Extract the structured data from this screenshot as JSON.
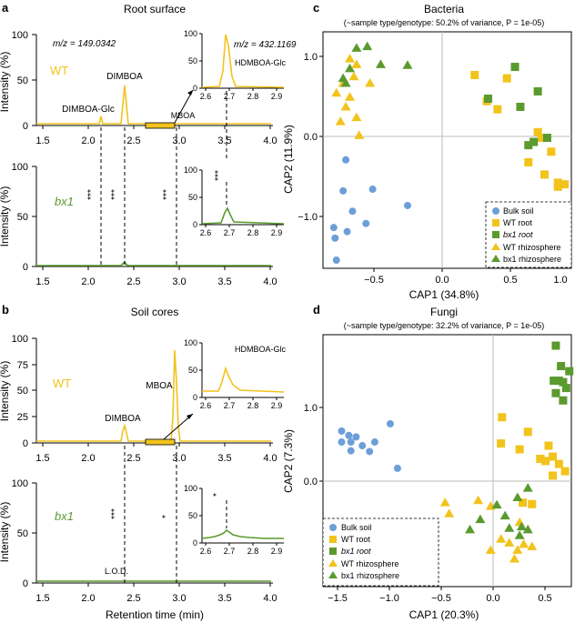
{
  "colors": {
    "wt": "#f2c31c",
    "wt_text": "#f2c31c",
    "bx1": "#5a9a2e",
    "bx1_text": "#5a9a2e",
    "bulk": "#6c9fd8",
    "axis": "#000000"
  },
  "panels": {
    "a": {
      "letter": "a",
      "title": "Root surface",
      "top": {
        "genotype": "WT",
        "mz": "m/z = 149.0342",
        "labels": {
          "dimboa": "DIMBOA",
          "dimboa_glc": "DIMBOA-Glc",
          "mboa": "MBOA"
        },
        "ylabel": "Intensity (%)",
        "yticks": [
          "0",
          "50",
          "100"
        ],
        "xticks": [
          "1.5",
          "2.0",
          "2.5",
          "3.0",
          "3.5",
          "4.0"
        ],
        "inset": {
          "mz": "m/z = 432.1169",
          "label": "HDMBOA-Glc",
          "yticks": [
            "0",
            "50",
            "100"
          ],
          "xticks": [
            "2.6",
            "2.7",
            "2.8",
            "2.9"
          ]
        }
      },
      "bottom": {
        "genotype": "bx1",
        "ylabel": "Intensity (%)",
        "yticks": [
          "0",
          "50",
          "100"
        ],
        "xticks": [
          "1.5",
          "2.0",
          "2.5",
          "3.0",
          "3.5",
          "4.0"
        ],
        "stars": [
          "***",
          "***",
          "***"
        ],
        "inset": {
          "star": "***",
          "yticks": [
            "0",
            "50",
            "100"
          ],
          "xticks": [
            "2.6",
            "2.7",
            "2.8",
            "2.9"
          ]
        }
      }
    },
    "b": {
      "letter": "b",
      "title": "Soil cores",
      "top": {
        "genotype": "WT",
        "labels": {
          "dimboa": "DIMBOA",
          "mboa": "MBOA"
        },
        "ylabel": "Intensity (%)",
        "yticks": [
          "0",
          "25",
          "50",
          "75",
          "100"
        ],
        "xticks": [
          "1.5",
          "2.0",
          "2.5",
          "3.0",
          "3.5",
          "4.0"
        ],
        "inset": {
          "label": "HDMBOA-Glc",
          "yticks": [
            "0",
            "50",
            "100"
          ],
          "xticks": [
            "2.6",
            "2.7",
            "2.8",
            "2.9"
          ]
        }
      },
      "bottom": {
        "genotype": "bx1",
        "ylabel": "Intensity (%)",
        "yticks": [
          "0",
          "50",
          "100"
        ],
        "xticks": [
          "1.5",
          "2.0",
          "2.5",
          "3.0",
          "3.5",
          "4.0"
        ],
        "stars": [
          "***",
          "*"
        ],
        "lod": "L.O.D.",
        "xlabel": "Retention time (min)",
        "inset": {
          "star": "*",
          "yticks": [
            "0",
            "50",
            "100"
          ],
          "xticks": [
            "2.6",
            "2.7",
            "2.8",
            "2.9"
          ]
        }
      }
    },
    "c": {
      "letter": "c",
      "title": "Bacteria",
      "subtitle": "(~sample type/genotype: 50.2% of variance, P = 1e-05)",
      "xlabel": "CAP1 (34.8%)",
      "ylabel": "CAP2 (11.9%)",
      "xticks": [
        "−0.5",
        "0.0",
        "0.5",
        "1.0"
      ],
      "yticks": [
        "−1.0",
        "0.0",
        "1.0"
      ]
    },
    "d": {
      "letter": "d",
      "title": "Fungi",
      "subtitle": "(~sample type/genotype: 32.2% of variance, P = 1e-05)",
      "xlabel": "CAP1 (20.3%)",
      "ylabel": "CAP2 (7.3%)",
      "xticks": [
        "−1.5",
        "−1.0",
        "−0.5",
        "0.0",
        "0.5"
      ],
      "yticks": [
        "0.0",
        "1.0"
      ]
    }
  },
  "legend": {
    "bulk": "Bulk soil",
    "wt_root": "WT root",
    "bx1_root": "bx1 root",
    "wt_rhizo": "WT rhizosphere",
    "bx1_rhizo": "bx1 rhizosphere"
  },
  "chart_data": [
    {
      "type": "line",
      "panel": "a-top",
      "title": "Root surface",
      "xlabel": "",
      "ylabel": "Intensity (%)",
      "xlim": [
        1.5,
        4.0
      ],
      "ylim": [
        0,
        100
      ],
      "series": [
        {
          "name": "WT",
          "color": "#f2c31c",
          "x": [
            1.5,
            2.13,
            2.15,
            2.17,
            2.33,
            2.36,
            2.38,
            2.4,
            2.43,
            2.94,
            4.0
          ],
          "y": [
            0,
            0,
            11,
            0,
            0,
            20,
            43,
            20,
            0,
            1,
            0
          ]
        }
      ],
      "peaks": [
        {
          "name": "DIMBOA-Glc",
          "rt": 2.15,
          "y": 11
        },
        {
          "name": "DIMBOA",
          "rt": 2.38,
          "y": 43
        },
        {
          "name": "MBOA",
          "rt": 2.94,
          "y": 1
        }
      ]
    },
    {
      "type": "line",
      "panel": "a-top-inset",
      "title": "HDMBOA-Glc",
      "xlim": [
        2.6,
        2.9
      ],
      "ylim": [
        0,
        100
      ],
      "series": [
        {
          "name": "WT",
          "x": [
            2.6,
            2.66,
            2.68,
            2.69,
            2.7,
            2.72,
            2.74,
            2.9
          ],
          "y": [
            0,
            2,
            40,
            100,
            80,
            25,
            4,
            0
          ]
        }
      ]
    },
    {
      "type": "line",
      "panel": "a-bottom",
      "xlim": [
        1.5,
        4.0
      ],
      "ylim": [
        0,
        100
      ],
      "series": [
        {
          "name": "bx1",
          "color": "#5a9a2e",
          "x": [
            1.5,
            2.36,
            2.38,
            2.4,
            4.0
          ],
          "y": [
            0,
            0,
            3,
            0,
            0
          ]
        }
      ],
      "significance": [
        {
          "rt": 2.15,
          "label": "***"
        },
        {
          "rt": 2.38,
          "label": "***"
        },
        {
          "rt": 2.94,
          "label": "***"
        }
      ]
    },
    {
      "type": "line",
      "panel": "a-bottom-inset",
      "xlim": [
        2.6,
        2.9
      ],
      "ylim": [
        0,
        100
      ],
      "series": [
        {
          "name": "bx1",
          "x": [
            2.6,
            2.67,
            2.69,
            2.7,
            2.72,
            2.74,
            2.9
          ],
          "y": [
            0,
            2,
            25,
            30,
            12,
            2,
            0
          ]
        }
      ]
    },
    {
      "type": "line",
      "panel": "b-top",
      "title": "Soil cores",
      "ylabel": "Intensity (%)",
      "xlim": [
        1.5,
        4.0
      ],
      "ylim": [
        0,
        100
      ],
      "series": [
        {
          "name": "WT",
          "color": "#f2c31c",
          "x": [
            1.5,
            2.35,
            2.38,
            2.41,
            2.9,
            2.92,
            2.94,
            2.96,
            2.98,
            3.0,
            4.0
          ],
          "y": [
            0,
            0,
            15,
            0,
            0,
            40,
            88,
            50,
            15,
            0,
            0
          ]
        }
      ],
      "peaks": [
        {
          "name": "DIMBOA",
          "rt": 2.38,
          "y": 15
        },
        {
          "name": "MBOA",
          "rt": 2.94,
          "y": 88
        }
      ]
    },
    {
      "type": "line",
      "panel": "b-top-inset",
      "title": "HDMBOA-Glc",
      "xlim": [
        2.6,
        2.9
      ],
      "ylim": [
        0,
        100
      ],
      "series": [
        {
          "name": "WT",
          "x": [
            2.6,
            2.66,
            2.68,
            2.7,
            2.72,
            2.74,
            2.78,
            2.9
          ],
          "y": [
            12,
            12,
            30,
            55,
            38,
            22,
            12,
            10
          ]
        }
      ]
    },
    {
      "type": "line",
      "panel": "b-bottom",
      "xlabel": "Retention time (min)",
      "xlim": [
        1.5,
        4.0
      ],
      "ylim": [
        0,
        100
      ],
      "series": [
        {
          "name": "bx1",
          "color": "#5a9a2e",
          "x": [
            1.5,
            4.0
          ],
          "y": [
            1,
            1
          ]
        }
      ],
      "significance": [
        {
          "rt": 2.38,
          "label": "***"
        },
        {
          "rt": 2.94,
          "label": "*"
        }
      ]
    },
    {
      "type": "line",
      "panel": "b-bottom-inset",
      "xlim": [
        2.6,
        2.9
      ],
      "ylim": [
        0,
        100
      ],
      "series": [
        {
          "name": "bx1",
          "x": [
            2.6,
            2.65,
            2.68,
            2.7,
            2.72,
            2.75,
            2.8,
            2.9
          ],
          "y": [
            8,
            10,
            14,
            22,
            16,
            12,
            9,
            8
          ]
        }
      ]
    },
    {
      "type": "scatter",
      "panel": "c",
      "title": "Bacteria",
      "xlabel": "CAP1 (34.8%)",
      "ylabel": "CAP2 (11.9%)",
      "xlim": [
        -0.75,
        1.1
      ],
      "ylim": [
        -1.65,
        1.25
      ],
      "series": [
        {
          "name": "Bulk soil",
          "marker": "circle",
          "color": "#6c9fd8",
          "points": [
            [
              -0.58,
              -0.32
            ],
            [
              -0.6,
              -0.7
            ],
            [
              -0.38,
              -0.68
            ],
            [
              -0.53,
              -0.95
            ],
            [
              -0.43,
              -1.1
            ],
            [
              -0.67,
              -1.15
            ],
            [
              -0.66,
              -1.28
            ],
            [
              -0.57,
              -1.2
            ],
            [
              -0.65,
              -1.55
            ],
            [
              -0.12,
              -0.88
            ]
          ]
        },
        {
          "name": "WT root",
          "marker": "square",
          "color": "#f2c31c",
          "points": [
            [
              0.38,
              0.72
            ],
            [
              0.62,
              0.68
            ],
            [
              0.47,
              0.4
            ],
            [
              0.55,
              0.3
            ],
            [
              0.85,
              0.02
            ],
            [
              0.95,
              -0.22
            ],
            [
              0.78,
              -0.35
            ],
            [
              0.9,
              -0.5
            ],
            [
              1.0,
              -0.6
            ],
            [
              1.05,
              -0.62
            ],
            [
              1.0,
              -0.65
            ],
            [
              0.88,
              -0.05
            ]
          ]
        },
        {
          "name": "bx1 root",
          "marker": "square",
          "color": "#5a9a2e",
          "points": [
            [
              0.68,
              0.82
            ],
            [
              0.85,
              0.52
            ],
            [
              0.72,
              0.33
            ],
            [
              0.48,
              0.43
            ],
            [
              0.82,
              -0.1
            ],
            [
              0.78,
              -0.14
            ],
            [
              0.92,
              -0.05
            ]
          ]
        },
        {
          "name": "WT rhizosphere",
          "marker": "triangle",
          "color": "#f2c31c",
          "points": [
            [
              -0.55,
              0.92
            ],
            [
              -0.5,
              0.85
            ],
            [
              -0.4,
              0.62
            ],
            [
              -0.55,
              0.45
            ],
            [
              -0.65,
              0.5
            ],
            [
              -0.58,
              0.33
            ],
            [
              -0.5,
              0.2
            ],
            [
              -0.62,
              0.15
            ],
            [
              -0.48,
              -0.02
            ],
            [
              -0.6,
              0.62
            ],
            [
              -0.52,
              0.7
            ]
          ]
        },
        {
          "name": "bx1 rhizosphere",
          "marker": "triangle",
          "color": "#5a9a2e",
          "points": [
            [
              -0.5,
              1.05
            ],
            [
              -0.42,
              1.07
            ],
            [
              -0.32,
              0.85
            ],
            [
              -0.55,
              0.8
            ],
            [
              -0.12,
              0.84
            ],
            [
              -0.6,
              0.68
            ],
            [
              -0.58,
              0.62
            ]
          ]
        }
      ]
    },
    {
      "type": "scatter",
      "panel": "d",
      "title": "Fungi",
      "xlabel": "CAP1 (20.3%)",
      "ylabel": "CAP2 (7.3%)",
      "xlim": [
        -1.6,
        0.8
      ],
      "ylim": [
        -1.7,
        1.75
      ],
      "series": [
        {
          "name": "Bulk soil",
          "marker": "circle",
          "color": "#6c9fd8",
          "points": [
            [
              -1.42,
              0.43
            ],
            [
              -1.35,
              0.37
            ],
            [
              -1.33,
              0.28
            ],
            [
              -1.42,
              0.28
            ],
            [
              -1.28,
              0.35
            ],
            [
              -1.22,
              0.23
            ],
            [
              -1.33,
              0.16
            ],
            [
              -1.1,
              0.28
            ],
            [
              -1.15,
              0.15
            ],
            [
              -0.95,
              0.53
            ],
            [
              -0.88,
              -0.08
            ]
          ]
        },
        {
          "name": "WT root",
          "marker": "square",
          "color": "#f2c31c",
          "points": [
            [
              0.13,
              0.62
            ],
            [
              0.38,
              0.42
            ],
            [
              0.12,
              0.26
            ],
            [
              0.3,
              0.18
            ],
            [
              0.58,
              0.23
            ],
            [
              0.5,
              0.05
            ],
            [
              0.55,
              0.02
            ],
            [
              0.62,
              0.08
            ],
            [
              0.68,
              -0.02
            ],
            [
              0.74,
              -0.12
            ],
            [
              0.62,
              -0.18
            ],
            [
              0.33,
              -0.55
            ],
            [
              0.42,
              -0.57
            ],
            [
              0.5,
              0.05
            ]
          ]
        },
        {
          "name": "bx1 root",
          "marker": "square",
          "color": "#5a9a2e",
          "points": [
            [
              0.65,
              1.6
            ],
            [
              0.7,
              1.32
            ],
            [
              0.78,
              1.25
            ],
            [
              0.68,
              1.12
            ],
            [
              0.72,
              1.1
            ],
            [
              0.75,
              1.02
            ],
            [
              0.63,
              1.12
            ],
            [
              0.65,
              0.95
            ],
            [
              0.72,
              0.85
            ]
          ]
        },
        {
          "name": "WT rhizosphere",
          "marker": "triangle",
          "color": "#f2c31c",
          "points": [
            [
              -0.42,
              -0.55
            ],
            [
              -0.38,
              -0.7
            ],
            [
              -0.1,
              -0.52
            ],
            [
              0.02,
              -0.6
            ],
            [
              0.12,
              -1.05
            ],
            [
              0.2,
              -1.1
            ],
            [
              0.28,
              -1.2
            ],
            [
              0.34,
              -1.12
            ],
            [
              0.02,
              -1.2
            ],
            [
              0.42,
              -1.15
            ],
            [
              0.25,
              -1.32
            ],
            [
              0.3,
              -0.82
            ]
          ]
        },
        {
          "name": "bx1 rhizosphere",
          "marker": "triangle",
          "color": "#5a9a2e",
          "points": [
            [
              0.38,
              -0.35
            ],
            [
              0.28,
              -0.48
            ],
            [
              0.08,
              -0.58
            ],
            [
              0.2,
              -0.9
            ],
            [
              0.32,
              -0.88
            ],
            [
              0.38,
              -0.92
            ],
            [
              -0.18,
              -0.92
            ],
            [
              -0.08,
              -0.78
            ],
            [
              0.16,
              -0.73
            ],
            [
              0.3,
              -1.0
            ]
          ]
        }
      ]
    }
  ]
}
